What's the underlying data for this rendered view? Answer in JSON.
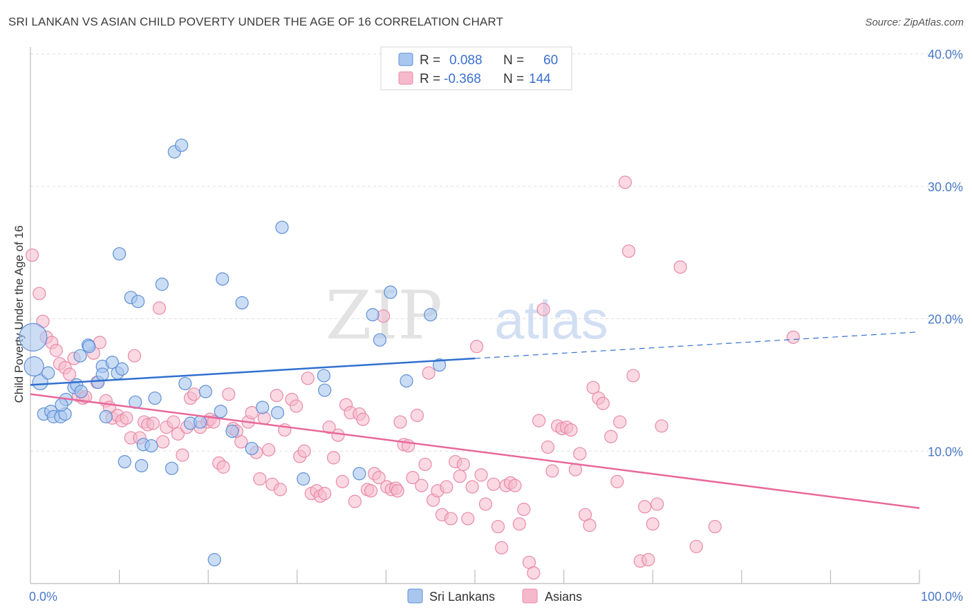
{
  "title": "SRI LANKAN VS ASIAN CHILD POVERTY UNDER THE AGE OF 16 CORRELATION CHART",
  "source": "Source: ZipAtlas.com",
  "watermark": {
    "zip": "ZIP",
    "atlas": "atlas"
  },
  "colors": {
    "sri_fill": "#a9c6ee",
    "sri_stroke": "#5d8fd6",
    "sri_line": "#2f6fd0",
    "asian_fill": "#f6b9cc",
    "asian_stroke": "#e889a8",
    "asian_line": "#e8689a",
    "axis_text": "#4a78c8",
    "grid": "#dddddd"
  },
  "legend": {
    "rows": [
      {
        "r_label": "R =",
        "r_value": "0.088",
        "n_label": "N =",
        "n_value": "60"
      },
      {
        "r_label": "R =",
        "r_value": "-0.368",
        "n_label": "N =",
        "n_value": "144"
      }
    ]
  },
  "chart_data": {
    "type": "scatter",
    "ylabel": "Child Poverty Under the Age of 16",
    "xlim": [
      0,
      100
    ],
    "ylim": [
      0,
      40
    ],
    "x_tick_labels": [
      "0.0%",
      "100.0%"
    ],
    "y_ticks": [
      10,
      20,
      30,
      40
    ],
    "y_tick_labels": [
      "10.0%",
      "20.0%",
      "30.0%",
      "40.0%"
    ],
    "grid": "horizontal dashed",
    "legend_position": "top-center",
    "series": [
      {
        "name": "Sri Lankans",
        "trend": {
          "x0": 0,
          "y0": 15.0,
          "x1": 50,
          "y1": 17.0,
          "dashed_to": {
            "x": 100,
            "y": 19.0
          }
        },
        "points": [
          [
            0.3,
            18.6
          ],
          [
            0.4,
            16.4
          ],
          [
            1.1,
            15.2
          ],
          [
            2.0,
            15.9
          ],
          [
            1.5,
            12.8
          ],
          [
            2.3,
            13.0
          ],
          [
            2.6,
            12.6
          ],
          [
            3.4,
            12.6
          ],
          [
            3.9,
            12.8
          ],
          [
            4.0,
            13.9
          ],
          [
            3.5,
            13.5
          ],
          [
            4.9,
            14.8
          ],
          [
            5.2,
            15.0
          ],
          [
            5.7,
            14.5
          ],
          [
            5.6,
            17.2
          ],
          [
            6.5,
            18.0
          ],
          [
            6.6,
            17.9
          ],
          [
            7.6,
            15.2
          ],
          [
            8.1,
            16.4
          ],
          [
            8.1,
            15.8
          ],
          [
            8.5,
            12.6
          ],
          [
            9.2,
            16.7
          ],
          [
            9.8,
            15.9
          ],
          [
            10.3,
            16.2
          ],
          [
            10.6,
            9.2
          ],
          [
            11.3,
            21.6
          ],
          [
            11.8,
            13.7
          ],
          [
            12.1,
            21.3
          ],
          [
            12.5,
            8.9
          ],
          [
            12.7,
            10.5
          ],
          [
            13.6,
            10.4
          ],
          [
            14.0,
            14.0
          ],
          [
            14.8,
            22.6
          ],
          [
            15.9,
            8.7
          ],
          [
            16.2,
            32.6
          ],
          [
            17.0,
            33.1
          ],
          [
            17.4,
            15.1
          ],
          [
            18.0,
            12.1
          ],
          [
            19.1,
            12.2
          ],
          [
            19.7,
            14.5
          ],
          [
            20.7,
            1.8
          ],
          [
            21.4,
            13.0
          ],
          [
            21.6,
            23.0
          ],
          [
            22.7,
            11.5
          ],
          [
            23.8,
            21.2
          ],
          [
            24.9,
            10.2
          ],
          [
            26.1,
            13.3
          ],
          [
            27.8,
            12.9
          ],
          [
            28.3,
            26.9
          ],
          [
            30.7,
            7.9
          ],
          [
            33.0,
            15.7
          ],
          [
            33.1,
            14.6
          ],
          [
            37.0,
            8.3
          ],
          [
            38.5,
            20.3
          ],
          [
            39.3,
            18.4
          ],
          [
            40.5,
            22.0
          ],
          [
            42.3,
            15.3
          ],
          [
            45.0,
            20.3
          ],
          [
            46.0,
            16.5
          ],
          [
            10.0,
            24.9
          ]
        ]
      },
      {
        "name": "Asians",
        "trend": {
          "x0": 0,
          "y0": 14.3,
          "x1": 100,
          "y1": 5.7
        },
        "points": [
          [
            0.2,
            24.8
          ],
          [
            1.0,
            21.9
          ],
          [
            1.4,
            19.8
          ],
          [
            1.8,
            18.6
          ],
          [
            2.4,
            18.2
          ],
          [
            2.9,
            17.6
          ],
          [
            3.3,
            16.6
          ],
          [
            3.9,
            16.3
          ],
          [
            4.4,
            15.8
          ],
          [
            4.9,
            17.0
          ],
          [
            5.4,
            14.2
          ],
          [
            5.9,
            14.0
          ],
          [
            6.2,
            14.1
          ],
          [
            7.1,
            17.4
          ],
          [
            7.5,
            15.2
          ],
          [
            7.8,
            18.2
          ],
          [
            8.5,
            13.8
          ],
          [
            8.9,
            13.3
          ],
          [
            9.2,
            12.5
          ],
          [
            9.8,
            12.7
          ],
          [
            10.3,
            12.3
          ],
          [
            10.8,
            12.5
          ],
          [
            11.3,
            11.0
          ],
          [
            11.7,
            17.2
          ],
          [
            12.3,
            11.0
          ],
          [
            12.8,
            12.2
          ],
          [
            13.2,
            12.0
          ],
          [
            13.8,
            12.1
          ],
          [
            14.5,
            20.8
          ],
          [
            14.9,
            10.7
          ],
          [
            15.3,
            11.8
          ],
          [
            16.1,
            12.2
          ],
          [
            16.6,
            11.3
          ],
          [
            17.1,
            9.7
          ],
          [
            17.6,
            11.8
          ],
          [
            18.0,
            14.0
          ],
          [
            18.4,
            14.3
          ],
          [
            19.1,
            11.8
          ],
          [
            19.9,
            12.2
          ],
          [
            20.2,
            12.4
          ],
          [
            20.6,
            12.2
          ],
          [
            21.2,
            9.1
          ],
          [
            21.7,
            8.8
          ],
          [
            22.3,
            14.3
          ],
          [
            22.8,
            11.7
          ],
          [
            23.2,
            11.5
          ],
          [
            23.7,
            10.7
          ],
          [
            24.5,
            12.2
          ],
          [
            24.9,
            12.9
          ],
          [
            25.4,
            9.9
          ],
          [
            25.8,
            7.9
          ],
          [
            26.3,
            12.5
          ],
          [
            26.8,
            10.1
          ],
          [
            27.2,
            7.5
          ],
          [
            27.7,
            14.2
          ],
          [
            28.1,
            7.1
          ],
          [
            28.6,
            11.6
          ],
          [
            29.4,
            13.9
          ],
          [
            29.9,
            13.4
          ],
          [
            30.3,
            9.6
          ],
          [
            30.8,
            10.0
          ],
          [
            31.2,
            15.5
          ],
          [
            31.6,
            6.8
          ],
          [
            32.2,
            7.0
          ],
          [
            32.6,
            6.6
          ],
          [
            33.1,
            6.8
          ],
          [
            33.6,
            11.8
          ],
          [
            34.1,
            9.5
          ],
          [
            34.6,
            11.2
          ],
          [
            35.1,
            7.7
          ],
          [
            35.5,
            13.5
          ],
          [
            36.0,
            12.9
          ],
          [
            36.5,
            6.2
          ],
          [
            37.0,
            12.8
          ],
          [
            37.4,
            12.4
          ],
          [
            37.9,
            7.1
          ],
          [
            38.3,
            7.0
          ],
          [
            38.7,
            8.3
          ],
          [
            39.2,
            8.0
          ],
          [
            39.7,
            20.2
          ],
          [
            40.1,
            7.3
          ],
          [
            40.6,
            7.1
          ],
          [
            41.1,
            7.2
          ],
          [
            41.6,
            12.2
          ],
          [
            42.0,
            10.5
          ],
          [
            42.5,
            10.4
          ],
          [
            43.0,
            8.0
          ],
          [
            43.5,
            12.7
          ],
          [
            44.0,
            7.4
          ],
          [
            44.4,
            9.0
          ],
          [
            44.8,
            15.9
          ],
          [
            45.3,
            6.3
          ],
          [
            45.8,
            7.0
          ],
          [
            46.3,
            5.2
          ],
          [
            46.8,
            7.3
          ],
          [
            47.3,
            4.9
          ],
          [
            47.8,
            9.2
          ],
          [
            48.3,
            8.1
          ],
          [
            48.7,
            9.0
          ],
          [
            49.2,
            4.9
          ],
          [
            49.7,
            7.3
          ],
          [
            50.2,
            17.9
          ],
          [
            50.7,
            8.2
          ],
          [
            51.2,
            6.0
          ],
          [
            52.1,
            7.5
          ],
          [
            52.6,
            4.3
          ],
          [
            53.0,
            2.7
          ],
          [
            53.5,
            7.4
          ],
          [
            54.0,
            7.6
          ],
          [
            54.5,
            7.4
          ],
          [
            55.0,
            4.5
          ],
          [
            55.5,
            5.6
          ],
          [
            56.1,
            1.6
          ],
          [
            56.6,
            0.8
          ],
          [
            57.2,
            12.3
          ],
          [
            57.7,
            20.7
          ],
          [
            58.2,
            10.3
          ],
          [
            58.7,
            8.5
          ],
          [
            59.3,
            11.9
          ],
          [
            59.8,
            11.7
          ],
          [
            60.3,
            11.8
          ],
          [
            60.8,
            11.6
          ],
          [
            61.3,
            8.6
          ],
          [
            61.8,
            9.8
          ],
          [
            62.4,
            5.2
          ],
          [
            62.9,
            4.4
          ],
          [
            63.3,
            14.8
          ],
          [
            63.9,
            14.0
          ],
          [
            64.4,
            13.6
          ],
          [
            65.3,
            11.1
          ],
          [
            66.0,
            7.7
          ],
          [
            66.3,
            12.2
          ],
          [
            66.9,
            30.3
          ],
          [
            67.3,
            25.1
          ],
          [
            67.8,
            15.7
          ],
          [
            68.6,
            1.7
          ],
          [
            69.1,
            5.8
          ],
          [
            69.5,
            1.8
          ],
          [
            70.0,
            4.5
          ],
          [
            70.5,
            6.0
          ],
          [
            71.0,
            11.9
          ],
          [
            73.1,
            23.9
          ],
          [
            74.9,
            2.8
          ],
          [
            77.0,
            4.3
          ],
          [
            85.8,
            18.6
          ],
          [
            41.3,
            7.0
          ]
        ]
      }
    ]
  },
  "bottom_legend": [
    "Sri Lankans",
    "Asians"
  ]
}
